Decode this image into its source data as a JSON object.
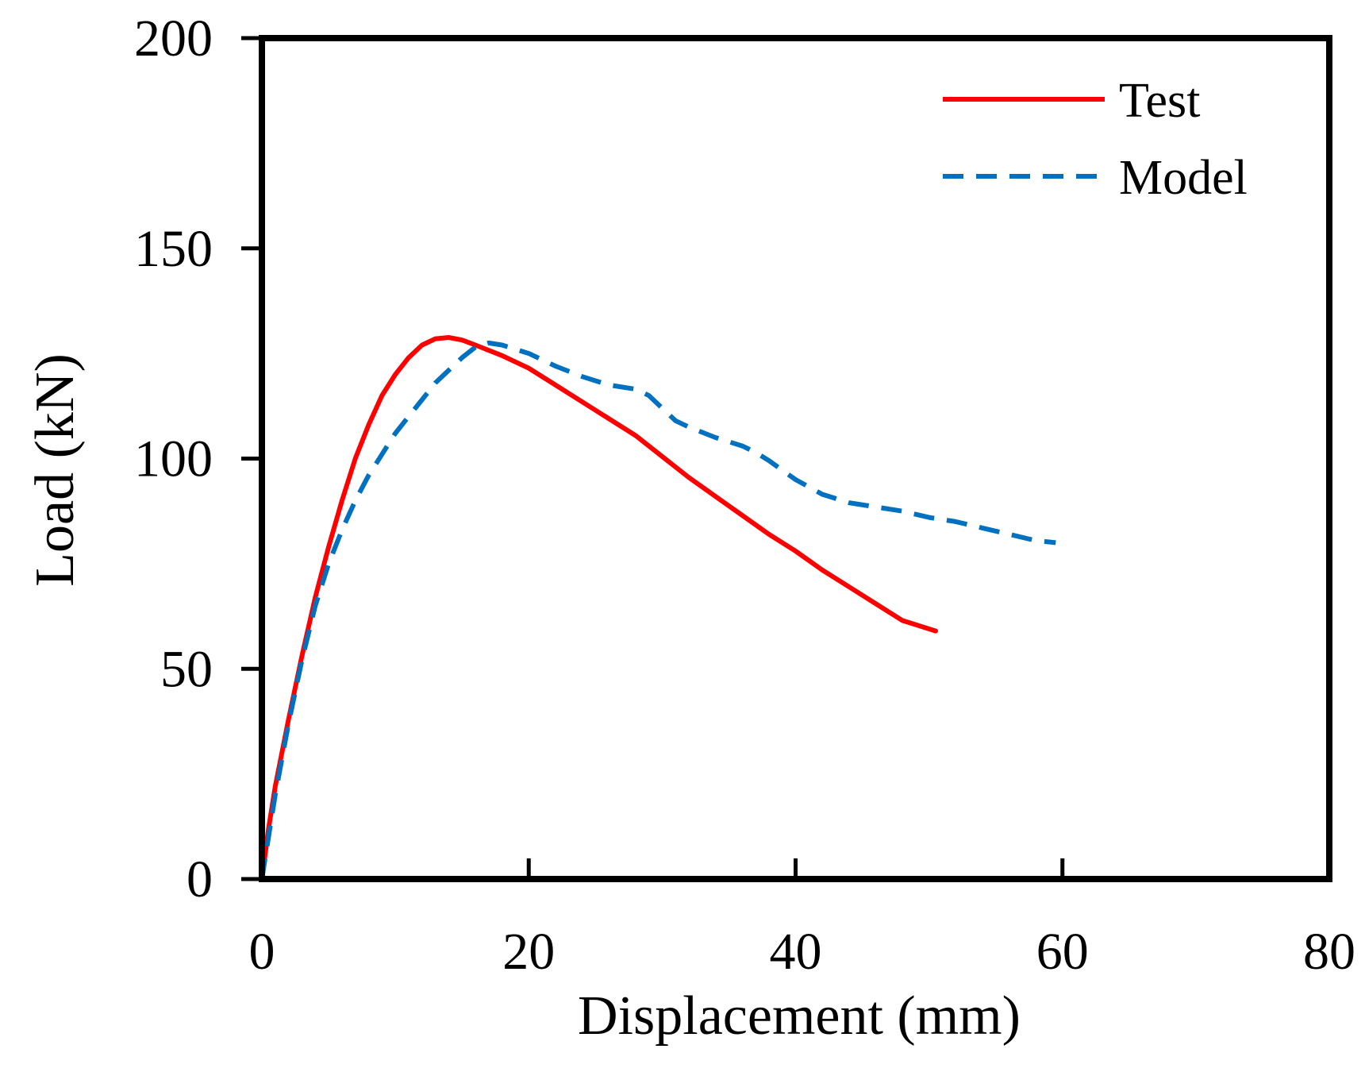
{
  "chart_data": {
    "type": "line",
    "title": "",
    "xlabel": "Displacement (mm)",
    "ylabel": "Load (kN)",
    "xlim": [
      0,
      80
    ],
    "ylim": [
      0,
      200
    ],
    "xticks": [
      0,
      20,
      40,
      60,
      80
    ],
    "yticks": [
      0,
      50,
      100,
      150,
      200
    ],
    "grid": false,
    "legend_position": "top-right",
    "series": [
      {
        "name": "Test",
        "color": "#ff0000",
        "style": "solid",
        "x": [
          0,
          0.5,
          1,
          2,
          3,
          4,
          5,
          6,
          7,
          8,
          9,
          10,
          11,
          12,
          13,
          14,
          15,
          16,
          18,
          20,
          22,
          24,
          26,
          28,
          30,
          32,
          34,
          36,
          38,
          40,
          42,
          44,
          46,
          48,
          50.5
        ],
        "y": [
          0,
          12,
          22,
          38,
          53,
          67,
          79,
          90,
          100,
          108,
          115,
          120,
          124,
          127,
          128.5,
          128.8,
          128.2,
          127,
          124.5,
          121.5,
          117.5,
          113.5,
          109.5,
          105.5,
          100.5,
          95.5,
          91,
          86.5,
          82,
          78,
          73.5,
          69.5,
          65.5,
          61.5,
          59
        ]
      },
      {
        "name": "Model",
        "color": "#0070c0",
        "style": "dashed",
        "x": [
          0,
          0.5,
          1,
          2,
          3,
          4,
          5,
          6,
          7,
          8,
          9,
          10,
          11,
          12,
          13,
          14,
          15,
          16,
          17,
          18,
          20,
          22,
          24,
          26,
          28,
          29,
          30,
          31,
          32,
          34,
          36,
          37,
          38,
          40,
          42,
          44,
          46,
          48,
          50,
          52,
          54,
          56,
          58,
          59.5
        ],
        "y": [
          0,
          10,
          20,
          37,
          52,
          65,
          75,
          83,
          90,
          96,
          101,
          106,
          110,
          114,
          118,
          121,
          124,
          126.5,
          127.5,
          127,
          125,
          122,
          119.5,
          117.5,
          116.5,
          115,
          112,
          109,
          107.5,
          105,
          103,
          101.5,
          99.5,
          95,
          91.5,
          89.5,
          88.5,
          87.5,
          86,
          85,
          83.5,
          82,
          80.5,
          80
        ]
      }
    ]
  }
}
